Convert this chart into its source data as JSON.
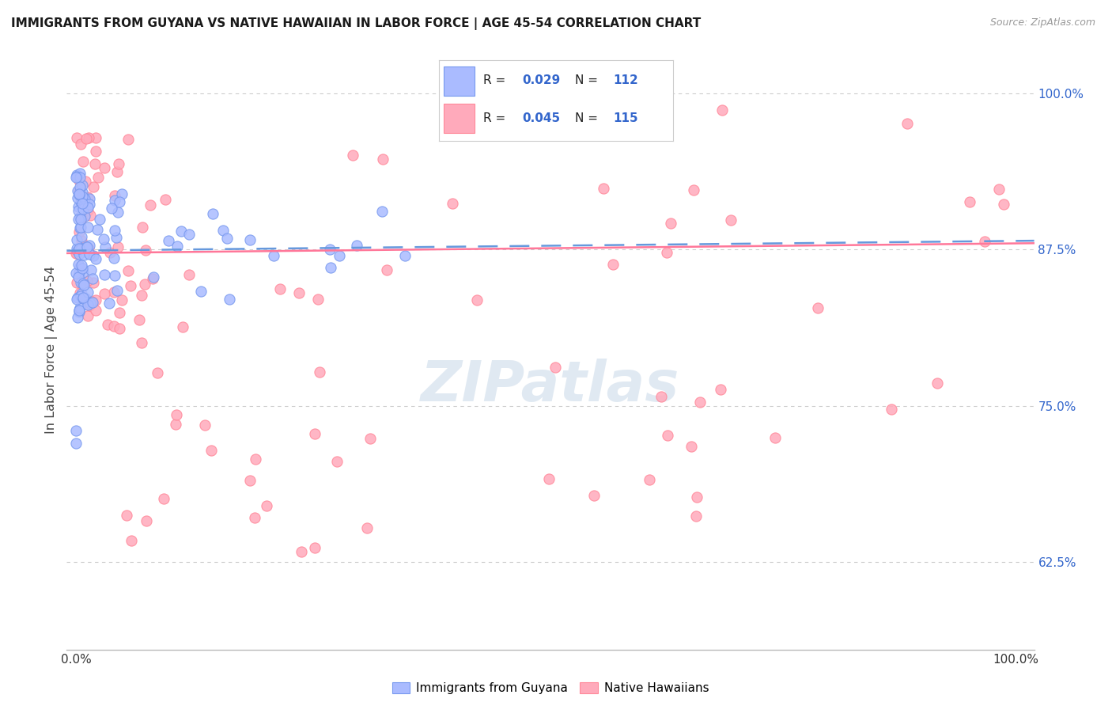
{
  "title": "IMMIGRANTS FROM GUYANA VS NATIVE HAWAIIAN IN LABOR FORCE | AGE 45-54 CORRELATION CHART",
  "source_text": "Source: ZipAtlas.com",
  "ylabel": "In Labor Force | Age 45-54",
  "xlim": [
    -0.01,
    1.02
  ],
  "ylim": [
    0.555,
    1.035
  ],
  "yticks": [
    0.625,
    0.75,
    0.875,
    1.0
  ],
  "ytick_labels": [
    "62.5%",
    "75.0%",
    "87.5%",
    "100.0%"
  ],
  "xtick_labels": [
    "0.0%",
    "100.0%"
  ],
  "legend_R_blue": "0.029",
  "legend_N_blue": "112",
  "legend_R_pink": "0.045",
  "legend_N_pink": "115",
  "color_blue_fill": "#AABBFF",
  "color_blue_edge": "#7799EE",
  "color_pink_fill": "#FFAABB",
  "color_pink_edge": "#FF8899",
  "color_blue_line": "#6699DD",
  "color_pink_line": "#FF7799",
  "color_blue_text": "#3366CC",
  "color_pink_text": "#FF6688",
  "watermark": "ZIPatlas",
  "background_color": "#FFFFFF",
  "grid_color": "#CCCCCC",
  "trend_blue_start_y": 0.874,
  "trend_blue_end_y": 0.882,
  "trend_pink_start_y": 0.872,
  "trend_pink_end_y": 0.88
}
